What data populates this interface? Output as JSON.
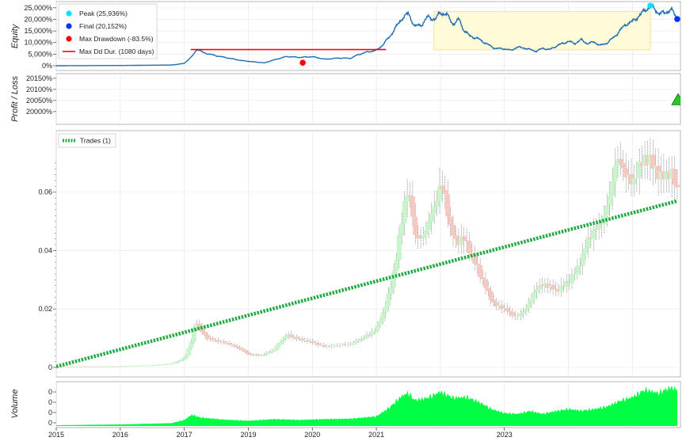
{
  "chart_data": [
    {
      "panel": "equity",
      "type": "area",
      "ylabel": "Equity",
      "y_ticks": [
        "25,000%",
        "20,000%",
        "15,000%",
        "10,000%",
        "5,000%",
        "0%"
      ],
      "ylim": [
        0,
        27000
      ],
      "legend": [
        {
          "label": "Peak (25,936%)",
          "marker": "circle",
          "color": "#00e5ff"
        },
        {
          "label": "Final (20,152%)",
          "marker": "circle",
          "color": "#0033ff"
        },
        {
          "label": "Max Drawdown (-83.5%)",
          "marker": "circle",
          "color": "#ff0000"
        },
        {
          "label": "Max Dd Dur. (1080 days)",
          "marker": "line",
          "color": "#ff0000"
        }
      ],
      "line_color": "#1f6fb5",
      "series": [
        {
          "values": [
            [
              2015.0,
              0
            ],
            [
              2016.0,
              100
            ],
            [
              2016.8,
              300
            ],
            [
              2017.0,
              1000
            ],
            [
              2017.12,
              4000
            ],
            [
              2017.2,
              7200
            ],
            [
              2017.3,
              5600
            ],
            [
              2017.5,
              4300
            ],
            [
              2017.9,
              2200
            ],
            [
              2018.25,
              1200
            ],
            [
              2018.4,
              2500
            ],
            [
              2018.6,
              4000
            ],
            [
              2018.8,
              3600
            ],
            [
              2019.0,
              3900
            ],
            [
              2019.2,
              2800
            ],
            [
              2019.4,
              3300
            ],
            [
              2019.6,
              3200
            ],
            [
              2019.7,
              4600
            ],
            [
              2019.85,
              5900
            ],
            [
              2020.0,
              6600
            ],
            [
              2020.1,
              9000
            ],
            [
              2020.22,
              13000
            ],
            [
              2020.4,
              20500
            ],
            [
              2020.5,
              22500
            ],
            [
              2020.6,
              17000
            ],
            [
              2020.7,
              17500
            ],
            [
              2020.8,
              21000
            ],
            [
              2020.92,
              20000
            ],
            [
              2021.0,
              23000
            ],
            [
              2021.1,
              22000
            ],
            [
              2021.2,
              18000
            ],
            [
              2021.3,
              20000
            ],
            [
              2021.35,
              16000
            ],
            [
              2021.45,
              13000
            ],
            [
              2021.6,
              11500
            ],
            [
              2021.75,
              9000
            ],
            [
              2021.85,
              7500
            ],
            [
              2022.0,
              7300
            ],
            [
              2022.1,
              6600
            ],
            [
              2022.2,
              8000
            ],
            [
              2022.3,
              7700
            ],
            [
              2022.4,
              7000
            ],
            [
              2022.5,
              6200
            ],
            [
              2022.6,
              7600
            ],
            [
              2022.7,
              6900
            ],
            [
              2022.85,
              9000
            ],
            [
              2023.0,
              10500
            ],
            [
              2023.1,
              9600
            ],
            [
              2023.2,
              11200
            ],
            [
              2023.3,
              9500
            ],
            [
              2023.4,
              10300
            ],
            [
              2023.5,
              8700
            ],
            [
              2023.6,
              9800
            ],
            [
              2023.7,
              12000
            ],
            [
              2023.8,
              15000
            ],
            [
              2023.9,
              18000
            ],
            [
              2024.0,
              19000
            ],
            [
              2024.1,
              21500
            ],
            [
              2024.2,
              24000
            ],
            [
              2024.28,
              25936
            ],
            [
              2024.4,
              23000
            ],
            [
              2024.5,
              22500
            ],
            [
              2024.6,
              24500
            ],
            [
              2024.7,
              20152
            ]
          ]
        }
      ],
      "markers": {
        "peak": [
          2024.28,
          25936
        ],
        "final": [
          2024.7,
          20152
        ],
        "max_drawdown": [
          2018.85,
          1300
        ]
      },
      "drawdown_line": {
        "x": [
          2017.1,
          2020.15
        ],
        "y": 7000
      },
      "shaded_drawdown": {
        "x": [
          2020.9,
          2024.28
        ],
        "y": 23500
      }
    },
    {
      "panel": "profit-loss",
      "type": "scatter",
      "ylabel": "Profit / Loss",
      "y_ticks": [
        "20150%",
        "20100%",
        "20050%",
        "20000%"
      ],
      "ylim": [
        19950,
        20160
      ],
      "series": [
        {
          "values": [
            [
              2024.7,
              20052
            ]
          ],
          "marker": "triangle",
          "color": "#22cc22"
        }
      ]
    },
    {
      "panel": "price",
      "type": "candlestick",
      "y_ticks": [
        "0.06",
        "0.04",
        "0.02",
        "0"
      ],
      "ylim": [
        -0.002,
        0.077
      ],
      "legend": [
        {
          "label": "Trades (1)",
          "style": "dashed",
          "color": "#22aa44"
        }
      ],
      "trade_line": {
        "x": [
          2015.0,
          2024.7
        ],
        "y": [
          0.0003,
          0.057
        ],
        "color": "#22aa44"
      },
      "series": [
        {
          "name": "price",
          "values": [
            [
              2015.0,
              0.0003
            ],
            [
              2015.5,
              0.0003
            ],
            [
              2016.0,
              0.0004
            ],
            [
              2016.5,
              0.0007
            ],
            [
              2016.8,
              0.0012
            ],
            [
              2017.0,
              0.003
            ],
            [
              2017.1,
              0.008
            ],
            [
              2017.18,
              0.016
            ],
            [
              2017.25,
              0.013
            ],
            [
              2017.35,
              0.01
            ],
            [
              2017.5,
              0.009
            ],
            [
              2017.7,
              0.008
            ],
            [
              2017.9,
              0.006
            ],
            [
              2018.0,
              0.0045
            ],
            [
              2018.2,
              0.004
            ],
            [
              2018.4,
              0.006
            ],
            [
              2018.6,
              0.011
            ],
            [
              2018.8,
              0.0095
            ],
            [
              2019.0,
              0.0085
            ],
            [
              2019.2,
              0.007
            ],
            [
              2019.4,
              0.0075
            ],
            [
              2019.6,
              0.008
            ],
            [
              2019.8,
              0.01
            ],
            [
              2020.0,
              0.013
            ],
            [
              2020.1,
              0.018
            ],
            [
              2020.2,
              0.025
            ],
            [
              2020.3,
              0.035
            ],
            [
              2020.4,
              0.05
            ],
            [
              2020.47,
              0.06
            ],
            [
              2020.55,
              0.055
            ],
            [
              2020.6,
              0.045
            ],
            [
              2020.7,
              0.043
            ],
            [
              2020.8,
              0.048
            ],
            [
              2020.92,
              0.055
            ],
            [
              2021.0,
              0.062
            ],
            [
              2021.07,
              0.058
            ],
            [
              2021.15,
              0.048
            ],
            [
              2021.25,
              0.042
            ],
            [
              2021.35,
              0.044
            ],
            [
              2021.45,
              0.04
            ],
            [
              2021.55,
              0.035
            ],
            [
              2021.65,
              0.03
            ],
            [
              2021.75,
              0.025
            ],
            [
              2021.85,
              0.021
            ],
            [
              2022.0,
              0.02
            ],
            [
              2022.1,
              0.018
            ],
            [
              2022.2,
              0.017
            ],
            [
              2022.3,
              0.019
            ],
            [
              2022.4,
              0.022
            ],
            [
              2022.5,
              0.027
            ],
            [
              2022.65,
              0.028
            ],
            [
              2022.8,
              0.026
            ],
            [
              2022.9,
              0.027
            ],
            [
              2023.0,
              0.029
            ],
            [
              2023.1,
              0.032
            ],
            [
              2023.2,
              0.036
            ],
            [
              2023.3,
              0.043
            ],
            [
              2023.4,
              0.046
            ],
            [
              2023.55,
              0.05
            ],
            [
              2023.65,
              0.058
            ],
            [
              2023.72,
              0.068
            ],
            [
              2023.8,
              0.07
            ],
            [
              2023.9,
              0.065
            ],
            [
              2024.0,
              0.062
            ],
            [
              2024.1,
              0.067
            ],
            [
              2024.2,
              0.071
            ],
            [
              2024.3,
              0.069
            ],
            [
              2024.45,
              0.064
            ],
            [
              2024.6,
              0.066
            ],
            [
              2024.7,
              0.06
            ]
          ]
        }
      ]
    },
    {
      "panel": "volume",
      "type": "area",
      "ylabel": "Volume",
      "y_ticks": [
        "0",
        "0",
        "0",
        "0"
      ],
      "fill_color": "#00ff44",
      "series": [
        {
          "values": [
            [
              2015.0,
              0.02
            ],
            [
              2016.0,
              0.04
            ],
            [
              2016.8,
              0.07
            ],
            [
              2017.0,
              0.15
            ],
            [
              2017.12,
              0.28
            ],
            [
              2017.25,
              0.21
            ],
            [
              2017.6,
              0.16
            ],
            [
              2018.0,
              0.13
            ],
            [
              2018.4,
              0.17
            ],
            [
              2018.8,
              0.15
            ],
            [
              2019.2,
              0.17
            ],
            [
              2019.6,
              0.18
            ],
            [
              2020.0,
              0.24
            ],
            [
              2020.2,
              0.45
            ],
            [
              2020.4,
              0.75
            ],
            [
              2020.5,
              0.82
            ],
            [
              2020.6,
              0.64
            ],
            [
              2020.8,
              0.7
            ],
            [
              2021.0,
              0.85
            ],
            [
              2021.2,
              0.7
            ],
            [
              2021.4,
              0.72
            ],
            [
              2021.6,
              0.6
            ],
            [
              2021.8,
              0.42
            ],
            [
              2022.0,
              0.32
            ],
            [
              2022.2,
              0.3
            ],
            [
              2022.4,
              0.37
            ],
            [
              2022.6,
              0.3
            ],
            [
              2022.8,
              0.37
            ],
            [
              2023.0,
              0.42
            ],
            [
              2023.2,
              0.38
            ],
            [
              2023.4,
              0.42
            ],
            [
              2023.6,
              0.48
            ],
            [
              2023.8,
              0.62
            ],
            [
              2024.0,
              0.72
            ],
            [
              2024.2,
              0.9
            ],
            [
              2024.4,
              0.82
            ],
            [
              2024.6,
              0.96
            ],
            [
              2024.7,
              0.9
            ]
          ]
        }
      ]
    }
  ],
  "x_axis": {
    "ticks": [
      "2015",
      "2016",
      "2017",
      "2019",
      "2020",
      "2021",
      "2023"
    ]
  }
}
